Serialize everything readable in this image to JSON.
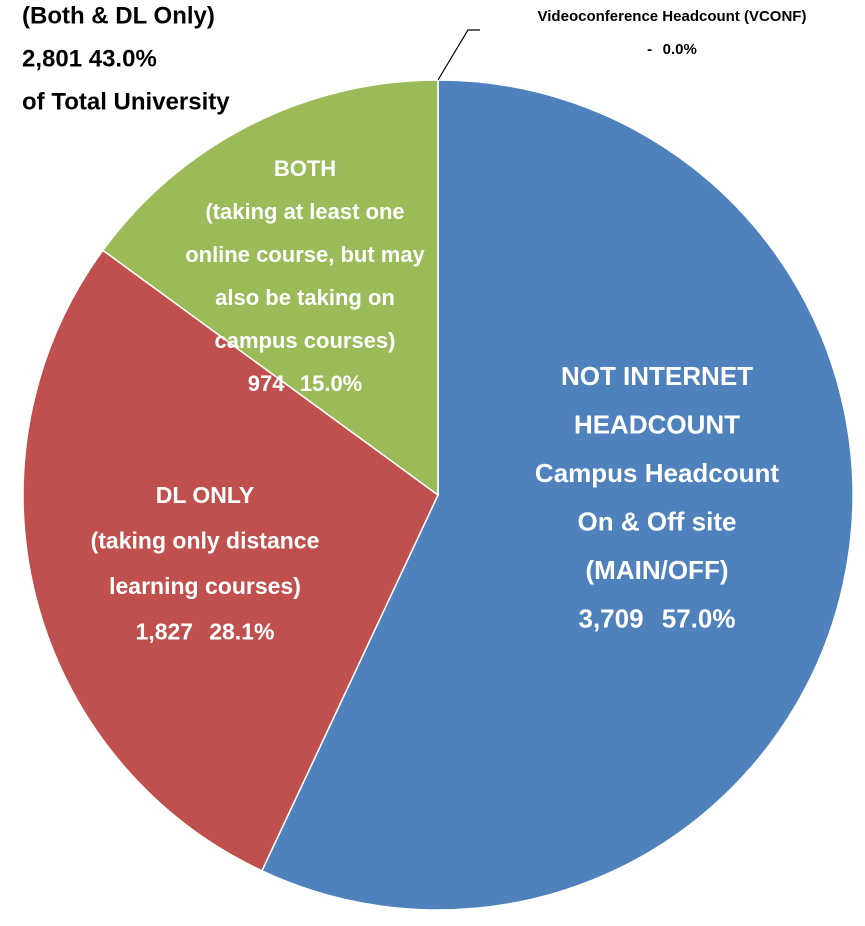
{
  "chart_data": {
    "type": "pie",
    "annotation": [
      "(Both & DL Only)",
      "2,801   43.0%",
      "of Total University"
    ],
    "categories": [
      [
        "NOT INTERNET",
        "HEADCOUNT",
        "Campus Headcount",
        "On & Off site",
        "(MAIN/OFF)"
      ],
      [
        "DL ONLY",
        "(taking only distance",
        "learning courses)"
      ],
      [
        "BOTH",
        "(taking at least one",
        "online course, but may",
        "also be taking on",
        "campus courses)"
      ],
      [
        "Videoconference Headcount (VCONF)"
      ]
    ],
    "values": [
      3709,
      1827,
      974,
      0
    ],
    "value_labels": [
      "3,709",
      "1,827",
      "974",
      "-"
    ],
    "percents": [
      57.0,
      28.1,
      15.0,
      0.0
    ],
    "percent_labels": [
      "57.0%",
      "28.1%",
      "15.0%",
      "0.0%"
    ],
    "colors": [
      "#4f81bd",
      "#c0504d",
      "#9bbb59",
      "#8064a2"
    ]
  }
}
